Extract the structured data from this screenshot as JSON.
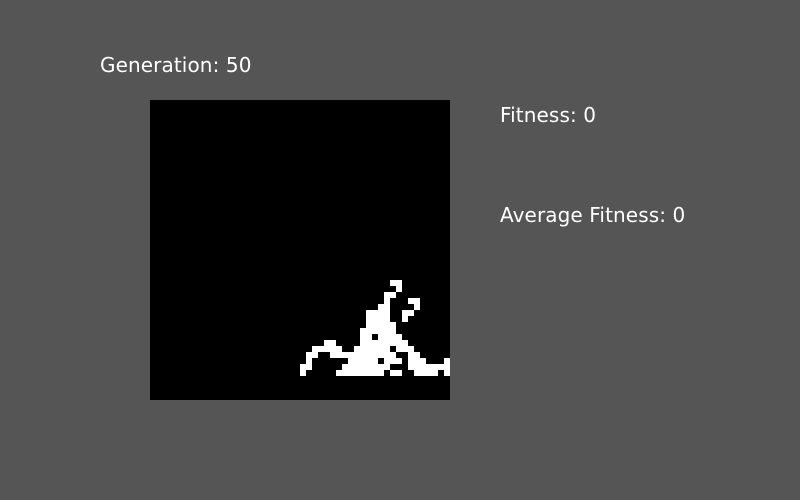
{
  "hud": {
    "generation_label": "Generation: 50",
    "fitness_label": "Fitness: 0",
    "average_fitness_label": "Average Fitness: 0"
  },
  "grid": {
    "columns": 50,
    "rows": 50,
    "background_color": "#000000",
    "live_cell_color": "#ffffff",
    "live_cells": [
      [
        40,
        30
      ],
      [
        41,
        30
      ],
      [
        41,
        31
      ],
      [
        39,
        32
      ],
      [
        40,
        32
      ],
      [
        39,
        33
      ],
      [
        43,
        33
      ],
      [
        44,
        33
      ],
      [
        38,
        34
      ],
      [
        39,
        34
      ],
      [
        44,
        34
      ],
      [
        36,
        35
      ],
      [
        37,
        35
      ],
      [
        38,
        35
      ],
      [
        39,
        35
      ],
      [
        42,
        35
      ],
      [
        43,
        35
      ],
      [
        36,
        36
      ],
      [
        37,
        36
      ],
      [
        38,
        36
      ],
      [
        39,
        36
      ],
      [
        42,
        36
      ],
      [
        36,
        37
      ],
      [
        37,
        37
      ],
      [
        38,
        37
      ],
      [
        39,
        37
      ],
      [
        40,
        37
      ],
      [
        35,
        38
      ],
      [
        36,
        38
      ],
      [
        37,
        38
      ],
      [
        38,
        38
      ],
      [
        39,
        38
      ],
      [
        40,
        38
      ],
      [
        35,
        39
      ],
      [
        36,
        39
      ],
      [
        38,
        39
      ],
      [
        39,
        39
      ],
      [
        40,
        39
      ],
      [
        41,
        39
      ],
      [
        29,
        40
      ],
      [
        30,
        40
      ],
      [
        35,
        40
      ],
      [
        36,
        40
      ],
      [
        37,
        40
      ],
      [
        38,
        40
      ],
      [
        39,
        40
      ],
      [
        40,
        40
      ],
      [
        41,
        40
      ],
      [
        42,
        40
      ],
      [
        27,
        41
      ],
      [
        28,
        41
      ],
      [
        29,
        41
      ],
      [
        30,
        41
      ],
      [
        31,
        41
      ],
      [
        34,
        41
      ],
      [
        35,
        41
      ],
      [
        36,
        41
      ],
      [
        37,
        41
      ],
      [
        38,
        41
      ],
      [
        39,
        41
      ],
      [
        41,
        41
      ],
      [
        42,
        41
      ],
      [
        43,
        41
      ],
      [
        26,
        42
      ],
      [
        27,
        42
      ],
      [
        30,
        42
      ],
      [
        31,
        42
      ],
      [
        32,
        42
      ],
      [
        33,
        42
      ],
      [
        34,
        42
      ],
      [
        35,
        42
      ],
      [
        36,
        42
      ],
      [
        37,
        42
      ],
      [
        38,
        42
      ],
      [
        39,
        42
      ],
      [
        40,
        42
      ],
      [
        43,
        42
      ],
      [
        44,
        42
      ],
      [
        26,
        43
      ],
      [
        33,
        43
      ],
      [
        34,
        43
      ],
      [
        35,
        43
      ],
      [
        36,
        43
      ],
      [
        37,
        43
      ],
      [
        39,
        43
      ],
      [
        40,
        43
      ],
      [
        41,
        43
      ],
      [
        43,
        43
      ],
      [
        44,
        43
      ],
      [
        45,
        43
      ],
      [
        49,
        43
      ],
      [
        25,
        44
      ],
      [
        26,
        44
      ],
      [
        32,
        44
      ],
      [
        33,
        44
      ],
      [
        34,
        44
      ],
      [
        35,
        44
      ],
      [
        36,
        44
      ],
      [
        37,
        44
      ],
      [
        38,
        44
      ],
      [
        39,
        44
      ],
      [
        43,
        44
      ],
      [
        44,
        44
      ],
      [
        45,
        44
      ],
      [
        46,
        44
      ],
      [
        47,
        44
      ],
      [
        48,
        44
      ],
      [
        49,
        44
      ],
      [
        25,
        45
      ],
      [
        31,
        45
      ],
      [
        32,
        45
      ],
      [
        33,
        45
      ],
      [
        34,
        45
      ],
      [
        35,
        45
      ],
      [
        36,
        45
      ],
      [
        37,
        45
      ],
      [
        38,
        45
      ],
      [
        40,
        45
      ],
      [
        41,
        45
      ],
      [
        44,
        45
      ],
      [
        45,
        45
      ],
      [
        46,
        45
      ],
      [
        47,
        45
      ],
      [
        49,
        45
      ]
    ]
  }
}
